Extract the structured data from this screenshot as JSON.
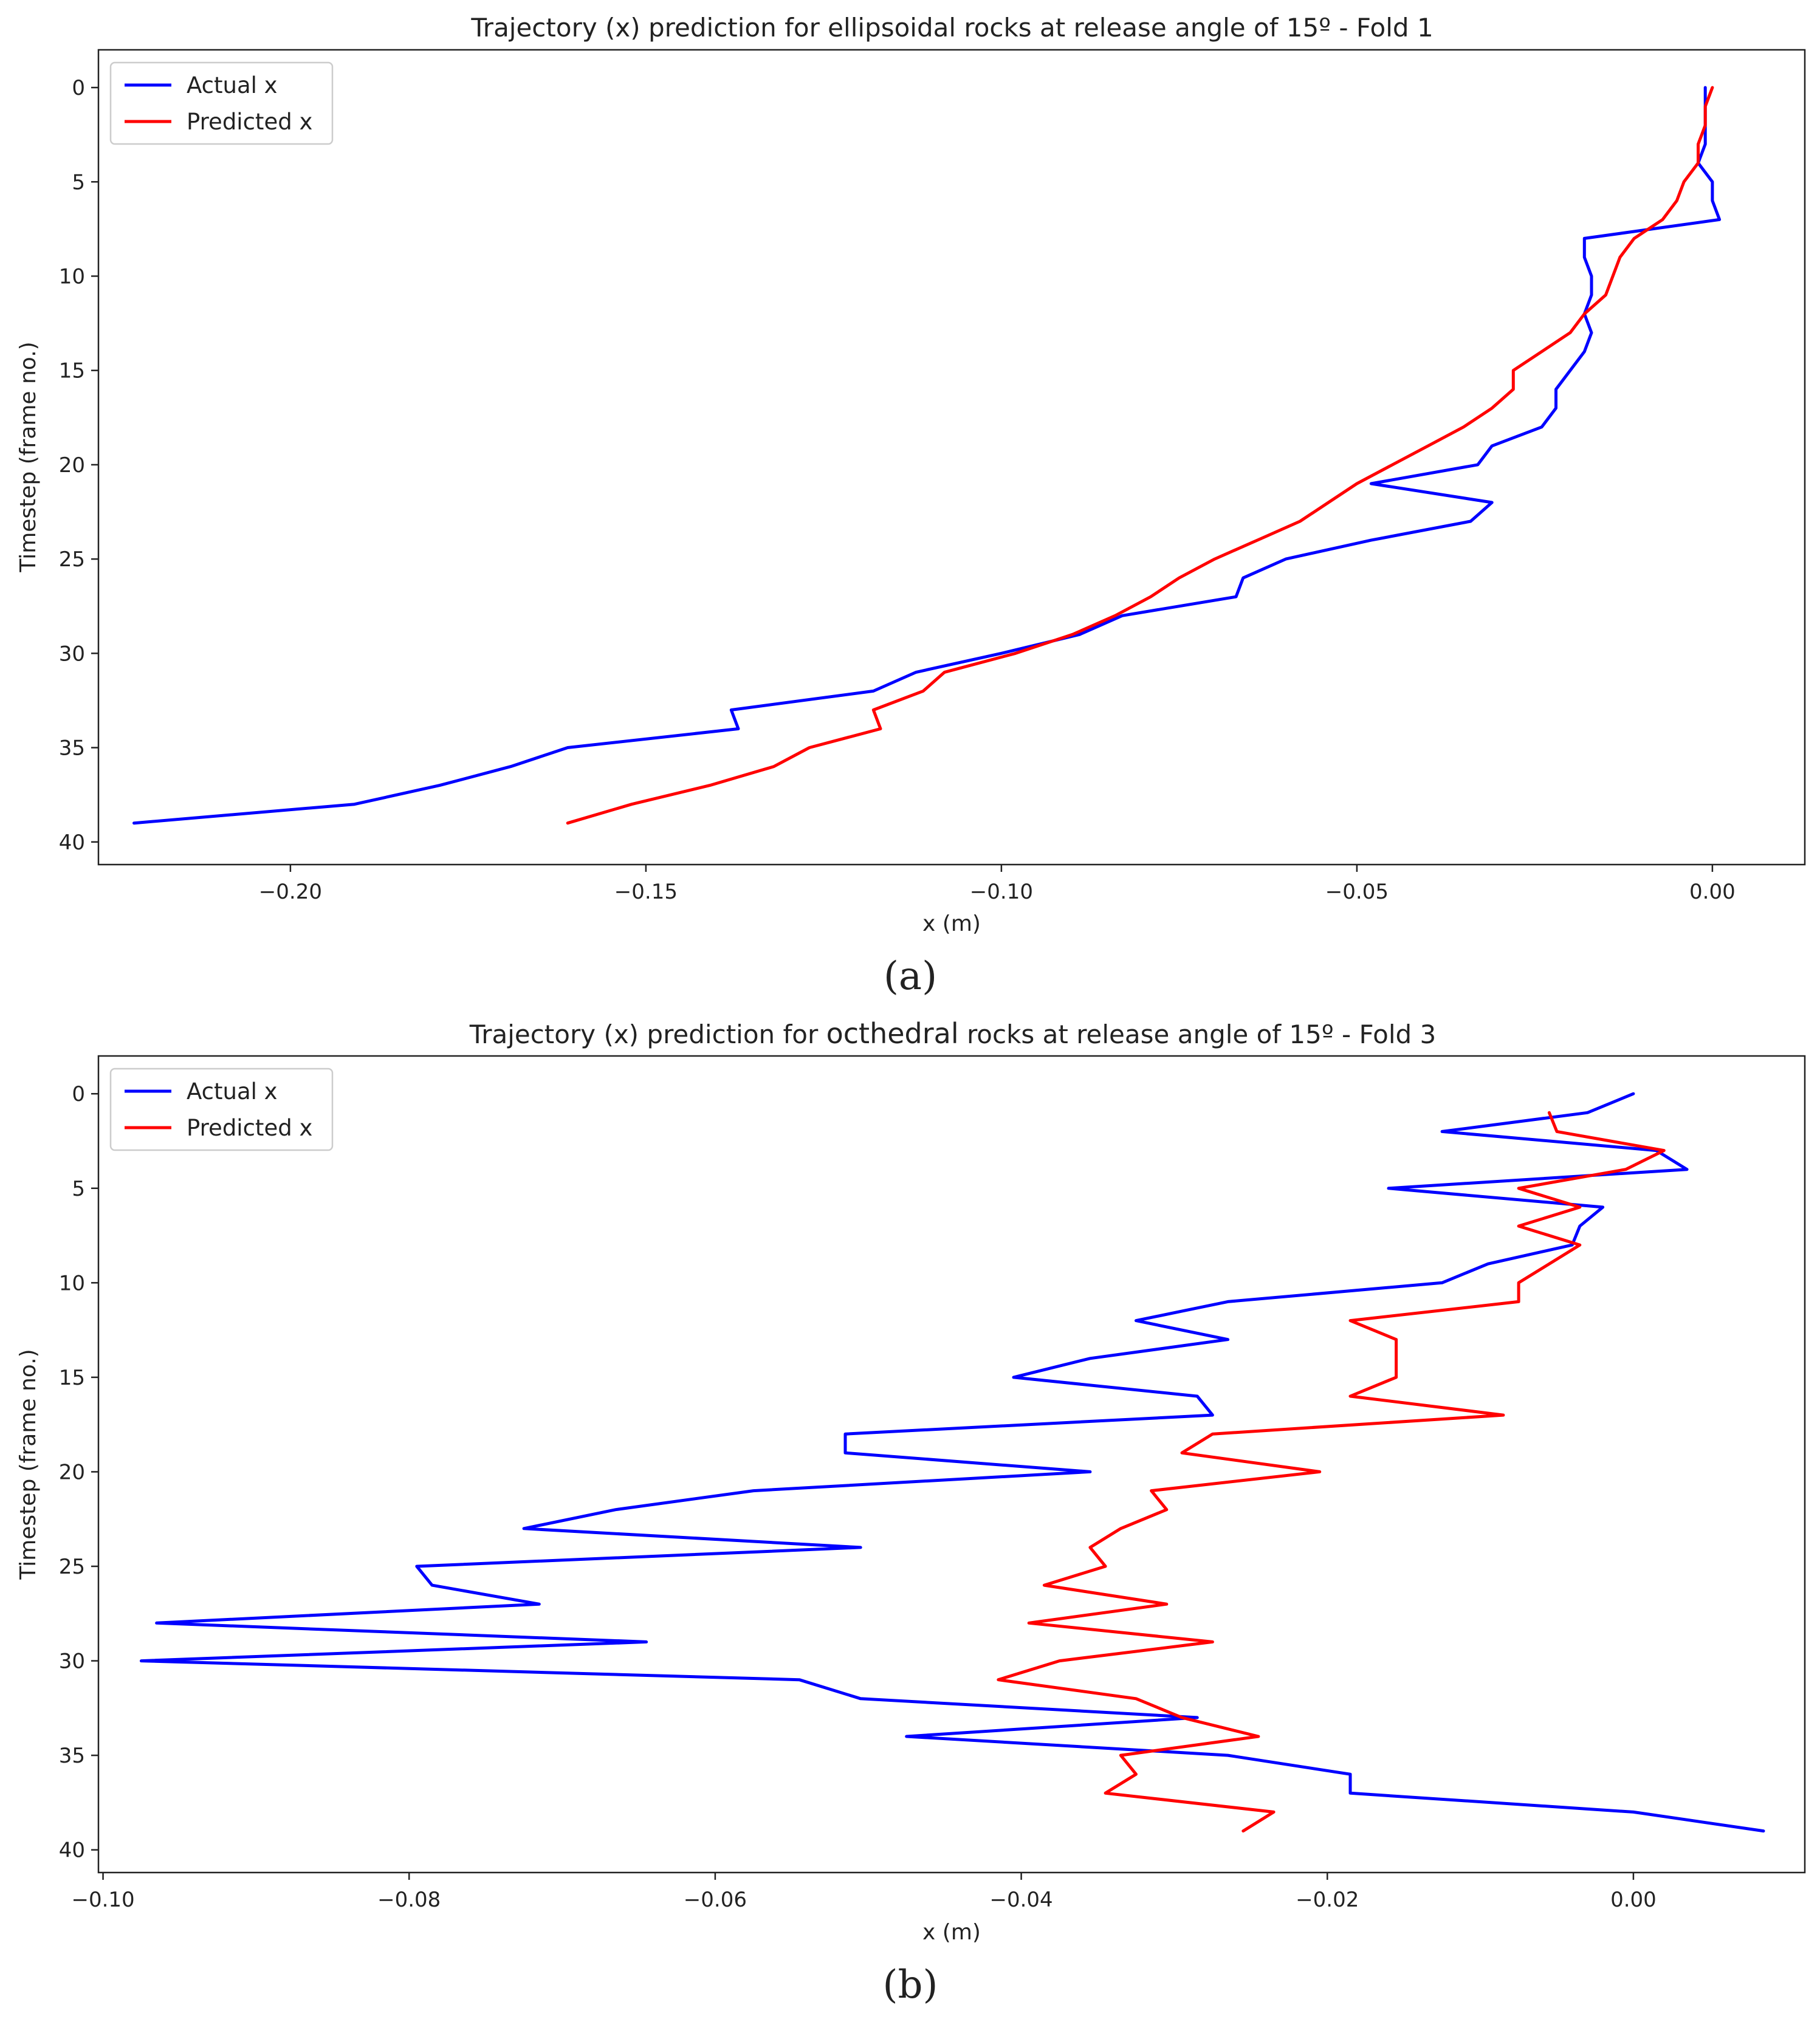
{
  "colors": {
    "actual": "#0000ff",
    "predicted": "#ff0000",
    "frame": "#222222",
    "legend_border": "#cccccc"
  },
  "chart_data": [
    {
      "type": "line",
      "panel_label": "(a)",
      "title": "Trajectory (x) prediction for ellipsoidal rocks at release angle of 15º - Fold 1",
      "xlabel": "x (m)",
      "ylabel": "Timestep (frame no.)",
      "xlim": [
        -0.227,
        0.013
      ],
      "ylim": [
        41.2,
        -2.0
      ],
      "xticks": [
        -0.2,
        -0.15,
        -0.1,
        -0.05,
        0.0
      ],
      "xtick_labels": [
        "−0.20",
        "−0.15",
        "−0.10",
        "−0.05",
        "0.00"
      ],
      "yticks": [
        0,
        5,
        10,
        15,
        20,
        25,
        30,
        35,
        40
      ],
      "ytick_labels": [
        "0",
        "5",
        "10",
        "15",
        "20",
        "25",
        "30",
        "35",
        "40"
      ],
      "legend_position": "upper-left",
      "series": [
        {
          "name": "Actual x",
          "y": [
            0,
            1,
            2,
            3,
            4,
            5,
            6,
            7,
            8,
            9,
            10,
            11,
            12,
            13,
            14,
            15,
            16,
            17,
            18,
            19,
            20,
            21,
            22,
            23,
            24,
            25,
            26,
            27,
            28,
            29,
            30,
            31,
            32,
            33,
            34,
            35,
            36,
            37,
            38,
            39
          ],
          "x": [
            -0.001,
            -0.001,
            -0.001,
            -0.001,
            -0.002,
            0.0,
            0.0,
            0.001,
            -0.018,
            -0.018,
            -0.017,
            -0.017,
            -0.018,
            -0.017,
            -0.018,
            -0.02,
            -0.022,
            -0.022,
            -0.024,
            -0.031,
            -0.033,
            -0.048,
            -0.031,
            -0.034,
            -0.048,
            -0.06,
            -0.066,
            -0.067,
            -0.083,
            -0.089,
            -0.1,
            -0.112,
            -0.118,
            -0.138,
            -0.137,
            -0.161,
            -0.169,
            -0.179,
            -0.191,
            -0.222
          ]
        },
        {
          "name": "Predicted x",
          "y": [
            0,
            1,
            2,
            3,
            4,
            5,
            6,
            7,
            8,
            9,
            10,
            11,
            12,
            13,
            14,
            15,
            16,
            17,
            18,
            19,
            20,
            21,
            22,
            23,
            24,
            25,
            26,
            27,
            28,
            29,
            30,
            31,
            32,
            33,
            34,
            35,
            36,
            37,
            38,
            39
          ],
          "x": [
            0.0,
            -0.001,
            -0.001,
            -0.002,
            -0.002,
            -0.004,
            -0.005,
            -0.007,
            -0.011,
            -0.013,
            -0.014,
            -0.015,
            -0.018,
            -0.02,
            -0.024,
            -0.028,
            -0.028,
            -0.031,
            -0.035,
            -0.04,
            -0.045,
            -0.05,
            -0.054,
            -0.058,
            -0.064,
            -0.07,
            -0.075,
            -0.079,
            -0.084,
            -0.09,
            -0.098,
            -0.108,
            -0.111,
            -0.118,
            -0.117,
            -0.127,
            -0.132,
            -0.141,
            -0.152,
            -0.161
          ]
        }
      ]
    },
    {
      "type": "line",
      "panel_label": "(b)",
      "title_pre": "Trajectory (x) prediction for ",
      "title_word": "octhedral",
      "title_post": " rocks at release angle of 15º - Fold 3",
      "xlabel": "x (m)",
      "ylabel": "Timestep (frame no.)",
      "xlim": [
        -0.1003,
        0.0112
      ],
      "ylim": [
        41.2,
        -2.0
      ],
      "xticks": [
        -0.1,
        -0.08,
        -0.06,
        -0.04,
        -0.02,
        0.0
      ],
      "xtick_labels": [
        "−0.10",
        "−0.08",
        "−0.06",
        "−0.04",
        "−0.02",
        "0.00"
      ],
      "yticks": [
        0,
        5,
        10,
        15,
        20,
        25,
        30,
        35,
        40
      ],
      "ytick_labels": [
        "0",
        "5",
        "10",
        "15",
        "20",
        "25",
        "30",
        "35",
        "40"
      ],
      "legend_position": "upper-left",
      "series": [
        {
          "name": "Actual x",
          "y": [
            0,
            1,
            2,
            3,
            4,
            5,
            6,
            7,
            8,
            9,
            10,
            11,
            12,
            13,
            14,
            15,
            16,
            17,
            18,
            19,
            20,
            21,
            22,
            23,
            24,
            25,
            26,
            27,
            28,
            29,
            30,
            31,
            32,
            33,
            34,
            35,
            36,
            37,
            38,
            39
          ],
          "x": [
            0.0,
            -0.003,
            -0.0125,
            0.0015,
            0.0035,
            -0.016,
            -0.002,
            -0.0035,
            -0.004,
            -0.0095,
            -0.0125,
            -0.0265,
            -0.0325,
            -0.0265,
            -0.0355,
            -0.0405,
            -0.0285,
            -0.0275,
            -0.0515,
            -0.0515,
            -0.0355,
            -0.0575,
            -0.0665,
            -0.0725,
            -0.0505,
            -0.0795,
            -0.0785,
            -0.0715,
            -0.0965,
            -0.0645,
            -0.0975,
            -0.0545,
            -0.0505,
            -0.0285,
            -0.0475,
            -0.0265,
            -0.0185,
            -0.0185,
            0.0,
            0.0085
          ]
        },
        {
          "name": "Predicted x",
          "y": [
            1,
            2,
            3,
            4,
            5,
            6,
            7,
            8,
            9,
            10,
            11,
            12,
            13,
            14,
            15,
            16,
            17,
            18,
            19,
            20,
            21,
            22,
            23,
            24,
            25,
            26,
            27,
            28,
            29,
            30,
            31,
            32,
            33,
            34,
            35,
            36,
            37,
            38,
            39
          ],
          "x": [
            -0.0055,
            -0.005,
            0.002,
            -0.0005,
            -0.0075,
            -0.0035,
            -0.0075,
            -0.0035,
            -0.0055,
            -0.0075,
            -0.0075,
            -0.0185,
            -0.0155,
            -0.0155,
            -0.0155,
            -0.0185,
            -0.0085,
            -0.0275,
            -0.0295,
            -0.0205,
            -0.0315,
            -0.0305,
            -0.0335,
            -0.0355,
            -0.0345,
            -0.0385,
            -0.0305,
            -0.0395,
            -0.0275,
            -0.0375,
            -0.0415,
            -0.0325,
            -0.0295,
            -0.0245,
            -0.0335,
            -0.0325,
            -0.0345,
            -0.0235,
            -0.0255
          ]
        }
      ]
    }
  ]
}
